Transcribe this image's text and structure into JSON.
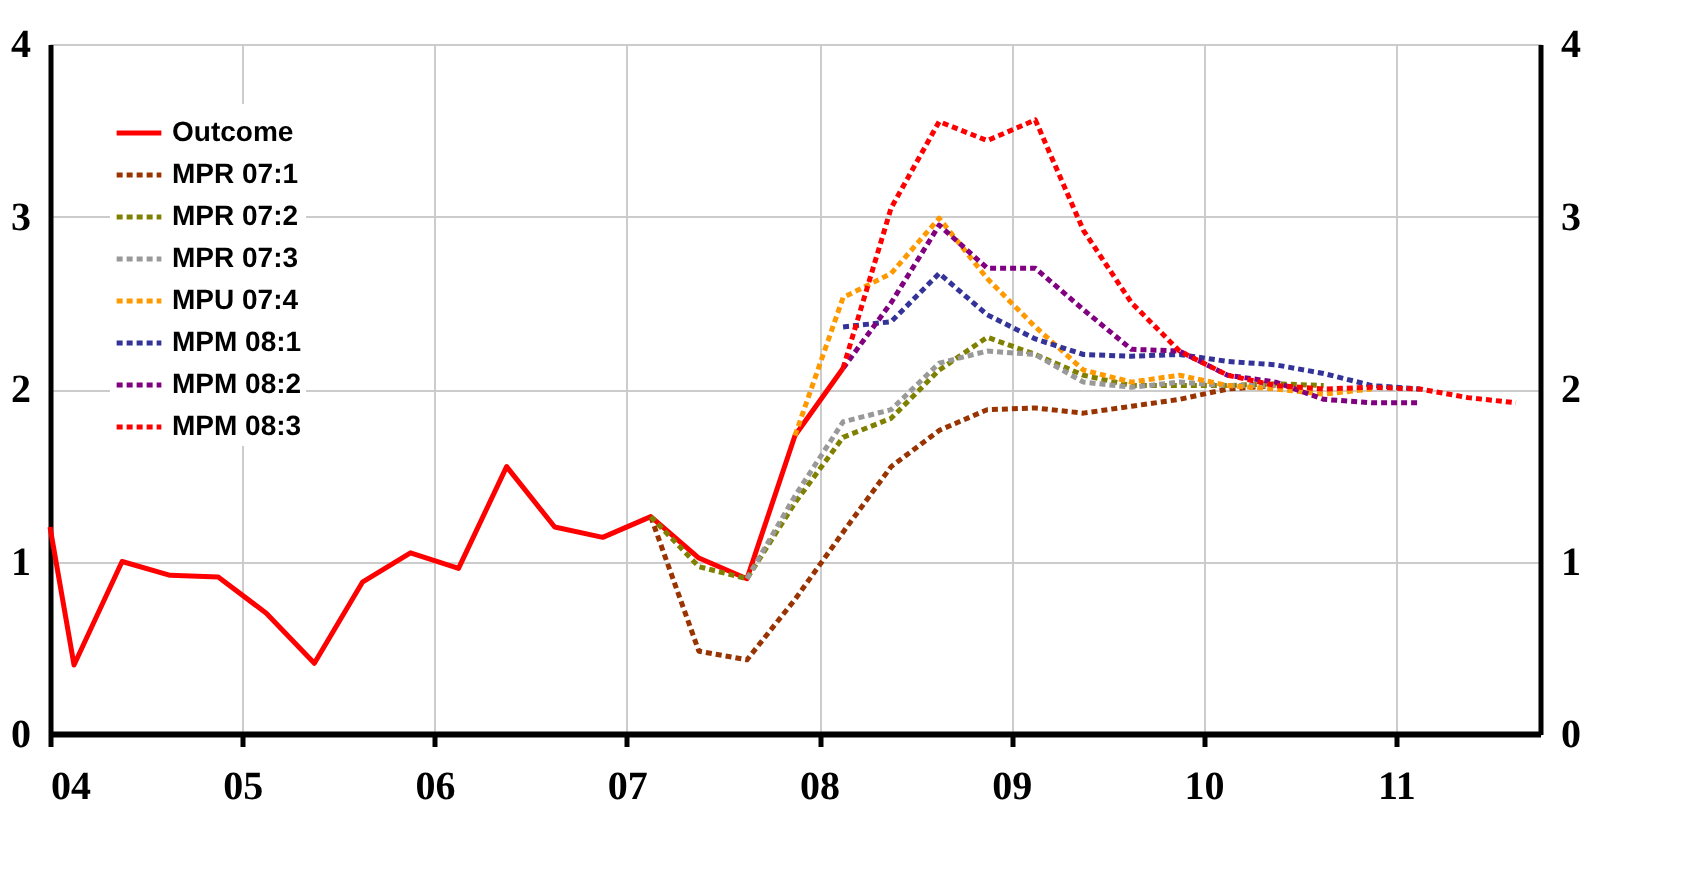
{
  "chart_data": {
    "type": "line",
    "xlim": [
      2004,
      2011.75
    ],
    "xticks": [
      {
        "value": 2004,
        "label": "04"
      },
      {
        "value": 2005,
        "label": "05"
      },
      {
        "value": 2006,
        "label": "06"
      },
      {
        "value": 2007,
        "label": "07"
      },
      {
        "value": 2008,
        "label": "08"
      },
      {
        "value": 2009,
        "label": "09"
      },
      {
        "value": 2010,
        "label": "10"
      },
      {
        "value": 2011,
        "label": "11"
      }
    ],
    "ylim": [
      0,
      4
    ],
    "yticks": [
      0,
      1,
      2,
      3,
      4
    ],
    "y2lim": [
      0,
      4
    ],
    "y2ticks": [
      0,
      1,
      2,
      3,
      4
    ],
    "grid": true,
    "legend": "top left",
    "marker": "none",
    "series": [
      {
        "name": "Outcome",
        "color": "#ff0000",
        "line_style": "solid",
        "x": [
          2004.0,
          2004.125,
          2004.375,
          2004.625,
          2004.875,
          2005.125,
          2005.375,
          2005.625,
          2005.875,
          2006.125,
          2006.375,
          2006.625,
          2006.875,
          2007.125,
          2007.375,
          2007.625,
          2007.875,
          2008.125
        ],
        "values": [
          1.2,
          0.4,
          1.0,
          0.92,
          0.91,
          0.7,
          0.41,
          0.88,
          1.05,
          0.96,
          1.55,
          1.2,
          1.14,
          1.26,
          1.02,
          0.9,
          1.73,
          2.12
        ]
      },
      {
        "name": "MPR 07:1",
        "color": "#993300",
        "line_style": "dashed",
        "x": [
          2007.125,
          2007.375,
          2007.625,
          2007.875,
          2008.125,
          2008.375,
          2008.625,
          2008.875,
          2009.125,
          2009.375,
          2009.625,
          2009.875,
          2010.125,
          2010.375
        ],
        "values": [
          1.26,
          0.48,
          0.43,
          0.78,
          1.17,
          1.55,
          1.76,
          1.88,
          1.89,
          1.86,
          1.9,
          1.94,
          2.0,
          2.02
        ]
      },
      {
        "name": "MPR 07:2",
        "color": "#808000",
        "line_style": "dashed",
        "x": [
          2007.125,
          2007.375,
          2007.625,
          2007.875,
          2008.125,
          2008.375,
          2008.625,
          2008.875,
          2009.125,
          2009.375,
          2009.625,
          2009.875,
          2010.125,
          2010.375,
          2010.625
        ],
        "values": [
          1.26,
          0.97,
          0.9,
          1.34,
          1.72,
          1.83,
          2.11,
          2.3,
          2.2,
          2.08,
          2.02,
          2.02,
          2.02,
          2.03,
          2.02
        ]
      },
      {
        "name": "MPR 07:3",
        "color": "#999999",
        "line_style": "dashed",
        "x": [
          2007.625,
          2007.875,
          2008.125,
          2008.375,
          2008.625,
          2008.875,
          2009.125,
          2009.375,
          2009.625,
          2009.875,
          2010.125,
          2010.375
        ],
        "values": [
          0.9,
          1.38,
          1.81,
          1.88,
          2.15,
          2.22,
          2.2,
          2.04,
          2.01,
          2.04,
          2.02,
          2.02
        ]
      },
      {
        "name": "MPU 07:4",
        "color": "#ff9900",
        "line_style": "dashed",
        "x": [
          2007.875,
          2008.125,
          2008.375,
          2008.625,
          2008.875,
          2009.125,
          2009.375,
          2009.625,
          2009.875,
          2010.125,
          2010.375,
          2010.625,
          2010.875
        ],
        "values": [
          1.73,
          2.53,
          2.67,
          2.99,
          2.64,
          2.36,
          2.11,
          2.04,
          2.08,
          2.02,
          2.0,
          1.97,
          2.0
        ]
      },
      {
        "name": "MPM 08:1",
        "color": "#333399",
        "line_style": "dashed",
        "x": [
          2008.125,
          2008.375,
          2008.625,
          2008.875,
          2009.125,
          2009.375,
          2009.625,
          2009.875,
          2010.125,
          2010.375,
          2010.625,
          2010.875,
          2011.125
        ],
        "values": [
          2.36,
          2.39,
          2.67,
          2.43,
          2.29,
          2.2,
          2.19,
          2.2,
          2.16,
          2.14,
          2.09,
          2.02,
          2.0
        ]
      },
      {
        "name": "MPM 08:2",
        "color": "#800080",
        "line_style": "dashed",
        "x": [
          2008.125,
          2008.375,
          2008.625,
          2008.875,
          2009.125,
          2009.375,
          2009.625,
          2009.875,
          2010.125,
          2010.375,
          2010.625,
          2010.875,
          2011.125
        ],
        "values": [
          2.12,
          2.5,
          2.95,
          2.7,
          2.7,
          2.46,
          2.23,
          2.22,
          2.08,
          2.04,
          1.94,
          1.92,
          1.92
        ]
      },
      {
        "name": "MPM 08:3",
        "color": "#ff0000",
        "line_style": "dashed",
        "x": [
          2008.125,
          2008.375,
          2008.625,
          2008.875,
          2009.125,
          2009.375,
          2009.625,
          2009.875,
          2010.125,
          2010.375,
          2010.625,
          2010.875,
          2011.125,
          2011.375,
          2011.625
        ],
        "values": [
          2.12,
          3.05,
          3.55,
          3.44,
          3.56,
          2.92,
          2.5,
          2.22,
          2.08,
          2.02,
          2.0,
          2.01,
          2.0,
          1.95,
          1.92
        ]
      }
    ]
  }
}
